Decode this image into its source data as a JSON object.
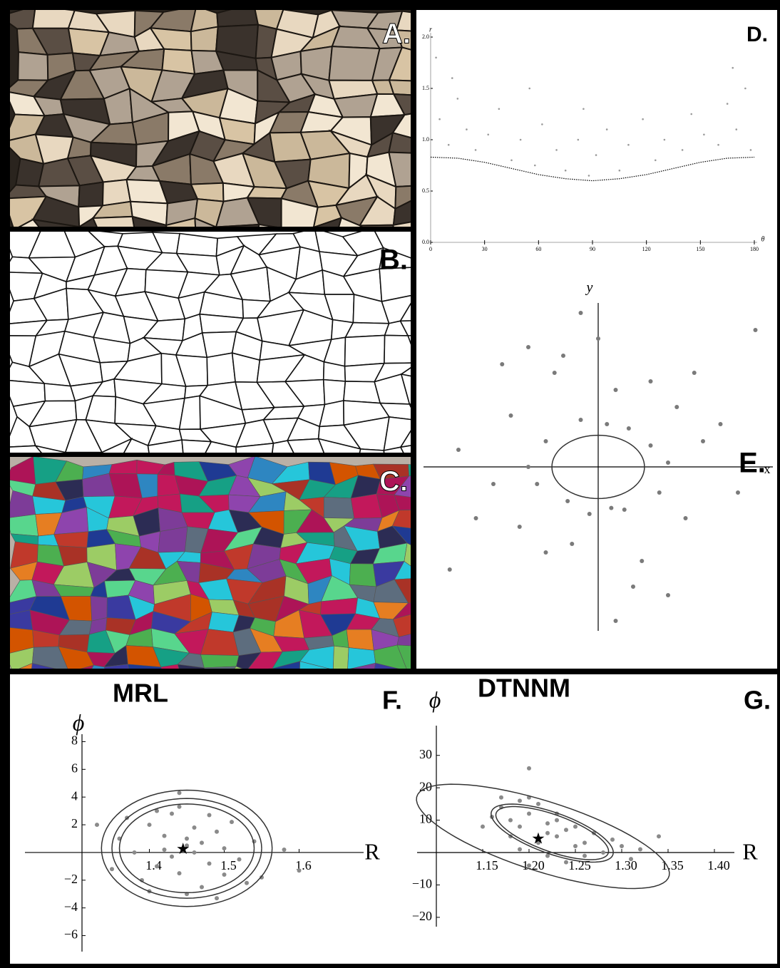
{
  "panels": [
    {
      "label": "A."
    },
    {
      "label": "B."
    },
    {
      "label": "C."
    }
  ],
  "chart_data": [
    {
      "type": "scatter",
      "label": "D.",
      "x_label": "θ",
      "y_label": "r",
      "xlim": [
        0,
        180
      ],
      "ylim": [
        0,
        2
      ],
      "xticks": [
        0,
        30,
        60,
        90,
        120,
        150,
        180
      ],
      "yticks": [
        {
          "value": 0,
          "label": "0.0"
        },
        {
          "value": 0.5,
          "label": "0.5"
        },
        {
          "value": 1,
          "label": "1.0"
        },
        {
          "value": 1.5,
          "label": "1.5"
        },
        {
          "value": 2,
          "label": "2.0"
        }
      ],
      "series": [
        {
          "color": "#9a9a9a",
          "x": [
            5,
            10,
            15,
            20,
            25,
            32,
            38,
            45,
            50,
            58,
            62,
            70,
            75,
            82,
            88,
            92,
            98,
            105,
            110,
            118,
            125,
            130,
            140,
            145,
            152,
            160,
            165,
            170,
            175,
            178,
            12,
            168,
            3,
            85,
            55
          ],
          "y": [
            1.2,
            0.95,
            1.4,
            1.1,
            0.9,
            1.05,
            1.3,
            0.8,
            1.0,
            0.75,
            1.15,
            0.9,
            0.7,
            1.0,
            0.65,
            0.85,
            1.1,
            0.7,
            0.95,
            1.2,
            0.8,
            1.0,
            0.9,
            1.25,
            1.05,
            0.95,
            1.35,
            1.1,
            1.5,
            0.9,
            1.6,
            1.7,
            1.8,
            1.3,
            1.5
          ]
        }
      ],
      "curve": {
        "x": [
          0,
          15,
          30,
          45,
          60,
          75,
          90,
          105,
          120,
          135,
          150,
          165,
          180
        ],
        "y": [
          0.83,
          0.82,
          0.78,
          0.72,
          0.66,
          0.62,
          0.6,
          0.62,
          0.66,
          0.72,
          0.78,
          0.82,
          0.83
        ]
      }
    },
    {
      "type": "scatter",
      "label": "E.",
      "x_label": "x",
      "y_label": "y",
      "xlim": [
        -2,
        2
      ],
      "ylim": [
        -2,
        2
      ],
      "series": [
        {
          "color": "#7a7a7a",
          "x": [
            -0.6,
            -0.7,
            -0.8,
            0.6,
            0.7,
            0.8,
            0.1,
            -0.2,
            0.3,
            -0.1,
            0.2,
            -0.3,
            -1.0,
            1.0,
            -1.2,
            1.2,
            -0.5,
            0.5,
            -0.9,
            0.9,
            0.0,
            0.4,
            -0.4,
            1.4,
            -1.4,
            1.6,
            -1.6,
            0.2,
            -0.2,
            0.6,
            -0.6,
            1.1,
            -1.1,
            0.35,
            -0.35,
            0.15,
            1.8,
            -1.7,
            0.8,
            -0.8
          ],
          "y": [
            0.3,
            -0.2,
            0.0,
            0.25,
            -0.3,
            0.05,
            0.5,
            0.55,
            -0.5,
            -0.55,
            0.9,
            -0.9,
            0.6,
            -0.6,
            -0.2,
            0.3,
            1.1,
            -1.1,
            -0.7,
            0.7,
            1.5,
            -1.4,
            1.3,
            0.5,
            -0.6,
            -0.3,
            0.2,
            -1.8,
            1.8,
            1.0,
            -1.0,
            1.1,
            1.2,
            0.45,
            -0.4,
            -0.48,
            1.6,
            -1.2,
            -1.5,
            1.4
          ]
        }
      ],
      "ellipses": [
        {
          "cx": 0,
          "cy": 0,
          "a": [
            0.53,
            0
          ],
          "b": [
            0,
            0.37
          ]
        }
      ]
    },
    {
      "type": "scatter",
      "label": "F.",
      "title": "MRL",
      "x_label": "R",
      "y_label": "ϕ",
      "xlim": [
        1.31,
        1.68
      ],
      "ylim": [
        -7,
        9
      ],
      "xticks": [
        1.4,
        1.5,
        1.6
      ],
      "yticks": [
        {
          "value": -6,
          "label": "−6"
        },
        {
          "value": -4,
          "label": "−4"
        },
        {
          "value": -2,
          "label": "−2"
        },
        2,
        4,
        6,
        8
      ],
      "series": [
        {
          "color": "#8a8a8a",
          "x": [
            1.45,
            1.42,
            1.48,
            1.4,
            1.5,
            1.44,
            1.46,
            1.38,
            1.52,
            1.43,
            1.47,
            1.41,
            1.49,
            1.36,
            1.54,
            1.45,
            1.39,
            1.51,
            1.44,
            1.46,
            1.35,
            1.55,
            1.42,
            1.48,
            1.37,
            1.53,
            1.45,
            1.43,
            1.47,
            1.4,
            1.5,
            1.58,
            1.33,
            1.6,
            1.44,
            1.41,
            1.49
          ],
          "y": [
            0.5,
            1.2,
            -0.8,
            2.0,
            0.3,
            -1.5,
            1.8,
            0.0,
            -0.5,
            2.8,
            -2.5,
            -1.0,
            1.5,
            1.0,
            0.8,
            -3.0,
            -2.0,
            2.2,
            3.3,
            0.0,
            -1.2,
            -1.8,
            0.2,
            2.7,
            2.5,
            -2.2,
            1.0,
            -0.3,
            0.7,
            -2.8,
            -1.6,
            0.2,
            2.0,
            -1.3,
            4.3,
            3.0,
            -3.3
          ]
        }
      ],
      "ellipses": [
        {
          "cx": 1.45,
          "cy": 0.3,
          "a": [
            0.114,
            0
          ],
          "b": [
            0,
            4.2
          ]
        },
        {
          "cx": 1.45,
          "cy": 0.3,
          "a": [
            0.1,
            0
          ],
          "b": [
            0,
            3.6
          ]
        },
        {
          "cx": 1.45,
          "cy": 0.3,
          "a": [
            0.09,
            0
          ],
          "b": [
            0,
            3.2
          ]
        }
      ],
      "center": {
        "x": 1.445,
        "y": 0.2
      }
    },
    {
      "type": "scatter",
      "label": "G.",
      "title": "DTNNM",
      "x_label": "R",
      "y_label": "ϕ",
      "xlim": [
        1.1,
        1.43
      ],
      "ylim": [
        -22,
        35
      ],
      "xticks": [
        1.15,
        {
          "value": 1.2,
          "label": "1.20"
        },
        1.25,
        {
          "value": 1.3,
          "label": "1.30"
        },
        1.35,
        {
          "value": 1.4,
          "label": "1.40"
        }
      ],
      "yticks": [
        {
          "value": -20,
          "label": "−20"
        },
        {
          "value": -10,
          "label": "−10"
        },
        10,
        20,
        30
      ],
      "series": [
        {
          "color": "#8a8a8a",
          "x": [
            1.18,
            1.2,
            1.22,
            1.19,
            1.21,
            1.17,
            1.23,
            1.25,
            1.16,
            1.24,
            1.2,
            1.22,
            1.26,
            1.28,
            1.19,
            1.21,
            1.23,
            1.18,
            1.27,
            1.3,
            1.15,
            1.2,
            1.24,
            1.22,
            1.29,
            1.31,
            1.17,
            1.2,
            1.25,
            1.34,
            1.21,
            1.19,
            1.26,
            1.23,
            1.32
          ],
          "y": [
            10,
            12,
            6,
            8,
            4,
            14,
            5,
            2,
            11,
            7,
            17,
            9,
            3,
            0,
            1,
            15,
            12,
            5,
            6,
            2,
            8,
            26,
            -3,
            -1,
            4,
            -2,
            17,
            -4,
            8,
            5,
            3,
            16,
            -1,
            10,
            1
          ]
        }
      ],
      "ellipses": [
        {
          "cx": 1.215,
          "cy": 5,
          "a": [
            -0.135,
            13
          ],
          "b": [
            0.02,
            9.5
          ]
        },
        {
          "cx": 1.225,
          "cy": 6,
          "a": [
            -0.065,
            7
          ],
          "b": [
            0.011,
            5.6
          ]
        },
        {
          "cx": 1.225,
          "cy": 6,
          "a": [
            -0.06,
            6.5
          ],
          "b": [
            0.01,
            5
          ]
        }
      ],
      "center": {
        "x": 1.21,
        "y": 4
      }
    }
  ]
}
